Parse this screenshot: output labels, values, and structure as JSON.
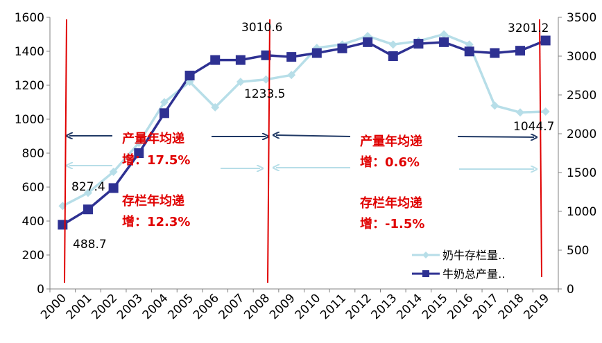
{
  "chart_data": {
    "type": "line",
    "categories": [
      "2000",
      "2001",
      "2002",
      "2003",
      "2004",
      "2005",
      "2006",
      "2007",
      "2008",
      "2009",
      "2010",
      "2011",
      "2012",
      "2013",
      "2014",
      "2015",
      "2016",
      "2017",
      "2018",
      "2019"
    ],
    "series": [
      {
        "name": "奶牛存栏量‥",
        "axis": "left",
        "color": "#b7dee8",
        "marker": "diamond",
        "values": [
          488.7,
          566,
          690,
          860,
          1100,
          1220,
          1070,
          1220,
          1233.5,
          1260,
          1420,
          1440,
          1490,
          1440,
          1460,
          1500,
          1440,
          1080,
          1040,
          1044.7
        ]
      },
      {
        "name": "牛奶总产量‥",
        "axis": "right",
        "color": "#2e3192",
        "marker": "square",
        "values": [
          827.4,
          1025,
          1300,
          1750,
          2265,
          2750,
          2950,
          2950,
          3010.6,
          2990,
          3040,
          3100,
          3180,
          3000,
          3160,
          3180,
          3060,
          3040,
          3070,
          3201.2
        ]
      }
    ],
    "y_left": {
      "min": 0,
      "max": 1600,
      "ticks": [
        "0",
        "200",
        "400",
        "600",
        "800",
        "1000",
        "1200",
        "1400",
        "1600"
      ]
    },
    "y_right": {
      "min": 0,
      "max": 3500,
      "ticks": [
        "0",
        "500",
        "1000",
        "1500",
        "2000",
        "2500",
        "3000",
        "3500"
      ]
    },
    "data_labels": [
      "488.7",
      "827.4",
      "1233.5",
      "3010.6",
      "1044.7",
      "3201.2"
    ],
    "annotations": {
      "left_prod_1": "产量年均递",
      "left_prod_2": "增：17.5%",
      "left_stock_1": "存栏年均递",
      "left_stock_2": "增：12.3%",
      "right_prod_1": "产量年均递",
      "right_prod_2": "增：0.6%",
      "right_stock_1": "存栏年均递",
      "right_stock_2": "增：-1.5%"
    },
    "legend_position": "bottom-right",
    "grid": false,
    "vertical_markers": [
      "2000",
      "2008",
      "2019"
    ]
  }
}
